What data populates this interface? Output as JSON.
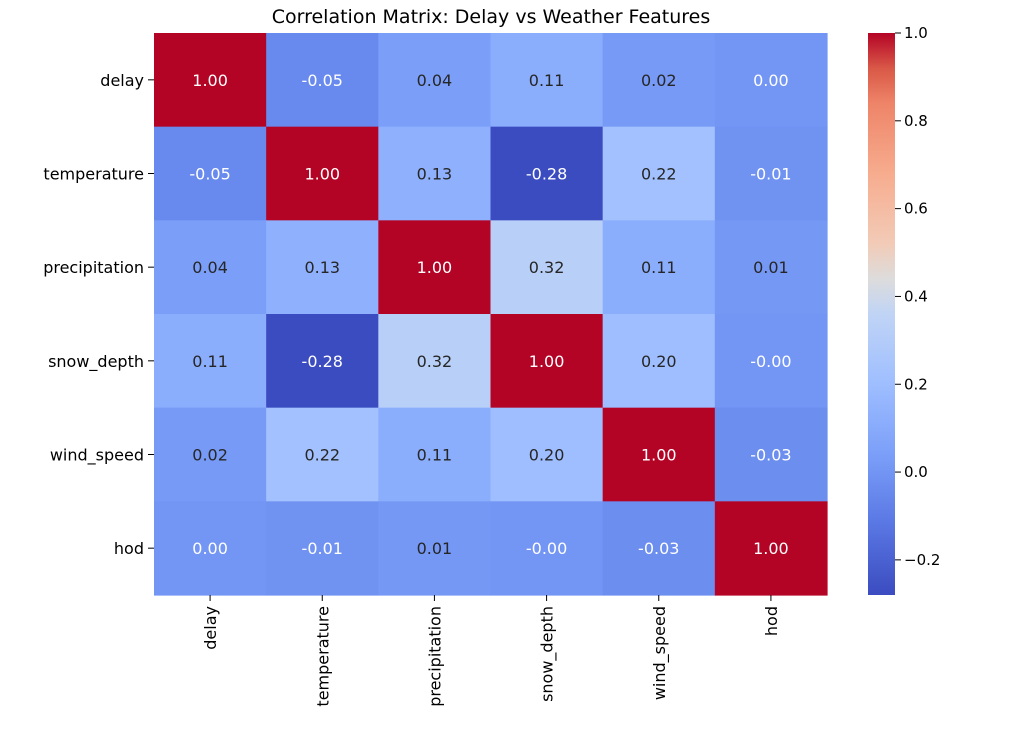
{
  "chart_data": {
    "type": "heatmap",
    "title": "Correlation Matrix: Delay vs Weather Features",
    "variables": [
      "delay",
      "temperature",
      "precipitation",
      "snow_depth",
      "wind_speed",
      "hod"
    ],
    "matrix": [
      [
        1.0,
        -0.05,
        0.04,
        0.11,
        0.02,
        0.0
      ],
      [
        -0.05,
        1.0,
        0.13,
        -0.28,
        0.22,
        -0.01
      ],
      [
        0.04,
        0.13,
        1.0,
        0.32,
        0.11,
        0.01
      ],
      [
        0.11,
        -0.28,
        0.32,
        1.0,
        0.2,
        -0.0
      ],
      [
        0.02,
        0.22,
        0.11,
        0.2,
        1.0,
        -0.03
      ],
      [
        0.0,
        -0.01,
        0.01,
        -0.0,
        -0.03,
        1.0
      ]
    ],
    "cell_labels": [
      [
        "1.00",
        "-0.05",
        "0.04",
        "0.11",
        "0.02",
        "0.00"
      ],
      [
        "-0.05",
        "1.00",
        "0.13",
        "-0.28",
        "0.22",
        "-0.01"
      ],
      [
        "0.04",
        "0.13",
        "1.00",
        "0.32",
        "0.11",
        "0.01"
      ],
      [
        "0.11",
        "-0.28",
        "0.32",
        "1.00",
        "0.20",
        "-0.00"
      ],
      [
        "0.02",
        "0.22",
        "0.11",
        "0.20",
        "1.00",
        "-0.03"
      ],
      [
        "0.00",
        "-0.01",
        "0.01",
        "-0.00",
        "-0.03",
        "1.00"
      ]
    ],
    "colormap": "coolwarm",
    "vmin": -0.28,
    "vmax": 1.0,
    "colorbar": {
      "ticks": [
        1.0,
        0.8,
        0.6,
        0.4,
        0.2,
        0.0,
        -0.2
      ],
      "tick_labels": [
        "1.0",
        "0.8",
        "0.6",
        "0.4",
        "0.2",
        "0.0",
        "−0.2"
      ]
    },
    "xlabel": "",
    "ylabel": ""
  }
}
